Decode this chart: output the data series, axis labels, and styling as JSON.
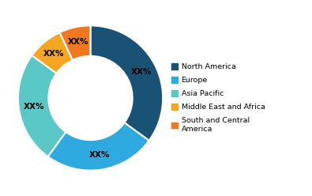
{
  "labels": [
    "North America",
    "Europe",
    "Asia Pacific",
    "Middle East and Africa",
    "South and Central America"
  ],
  "values": [
    35,
    25,
    25,
    8,
    7
  ],
  "colors": [
    "#1a5276",
    "#2eaae1",
    "#5bc8c8",
    "#f5a623",
    "#f07820"
  ],
  "donut_width": 0.42,
  "legend_labels": [
    "North America",
    "Europe",
    "Asia Pacific",
    "Middle East and Africa",
    "South and Central\nAmerica"
  ],
  "legend_colors": [
    "#1a5276",
    "#2eaae1",
    "#5bc8c8",
    "#f5a623",
    "#f07820"
  ],
  "start_angle": 90,
  "background_color": "#ffffff",
  "label_fontsize": 7.5,
  "legend_fontsize": 6.8
}
